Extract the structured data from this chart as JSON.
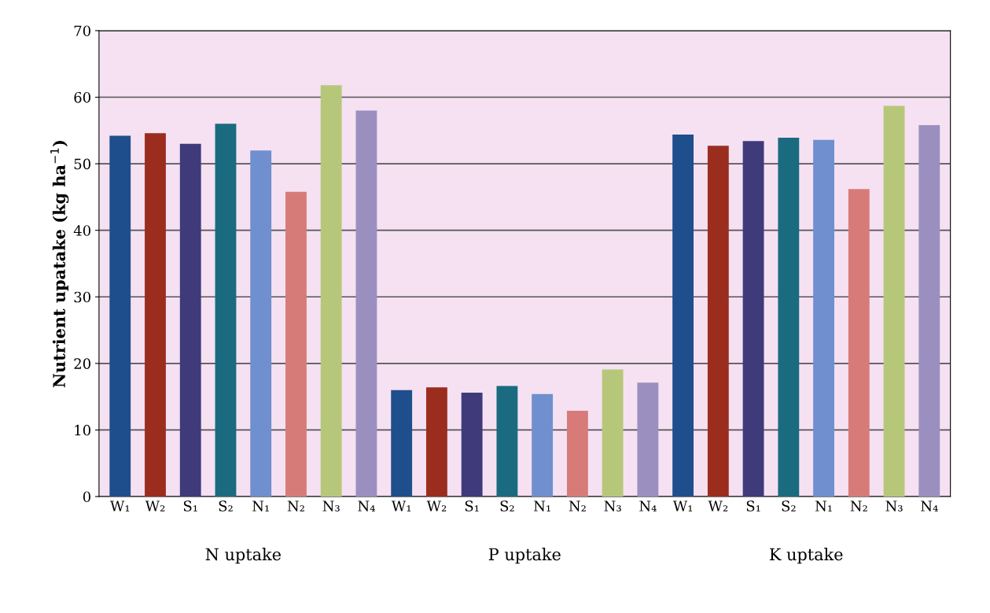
{
  "chart_data": {
    "type": "bar",
    "ylabel": "Nutrient upatake (kg ha$^{−1}$)",
    "categories": [
      "W₁",
      "W₂",
      "S₁",
      "S₂",
      "N₁",
      "N₂",
      "N₃",
      "N₄",
      "W₁",
      "W₂",
      "S₁",
      "S₂",
      "N₁",
      "N₂",
      "N₃",
      "N₄",
      "W₁",
      "W₂",
      "S₁",
      "S₂",
      "N₁",
      "N₂",
      "N₃",
      "N₄"
    ],
    "values": [
      54.2,
      54.6,
      53,
      56,
      52,
      45.8,
      61.8,
      58,
      16,
      16.4,
      15.6,
      16.6,
      15.4,
      12.9,
      19.1,
      17.1,
      54.4,
      52.7,
      53.4,
      53.9,
      53.6,
      46.2,
      58.7,
      55.8
    ],
    "colors": [
      "#1f4e8c",
      "#9b2d1f",
      "#3f3a7a",
      "#1a6b80",
      "#6f8fcf",
      "#d77b78",
      "#b7c77a",
      "#9b8fc0",
      "#1f4e8c",
      "#9b2d1f",
      "#3f3a7a",
      "#1a6b80",
      "#6f8fcf",
      "#d77b78",
      "#b7c77a",
      "#9b8fc0",
      "#1f4e8c",
      "#9b2d1f",
      "#3f3a7a",
      "#1a6b80",
      "#6f8fcf",
      "#d77b78",
      "#b7c77a",
      "#9b8fc0"
    ],
    "annotations": [
      "N uptake",
      "P uptake",
      "K uptake"
    ],
    "ylim": [
      0,
      70
    ],
    "yticks": [
      0,
      10,
      20,
      30,
      40,
      50,
      60,
      70
    ],
    "grid": "y",
    "legend": false
  }
}
